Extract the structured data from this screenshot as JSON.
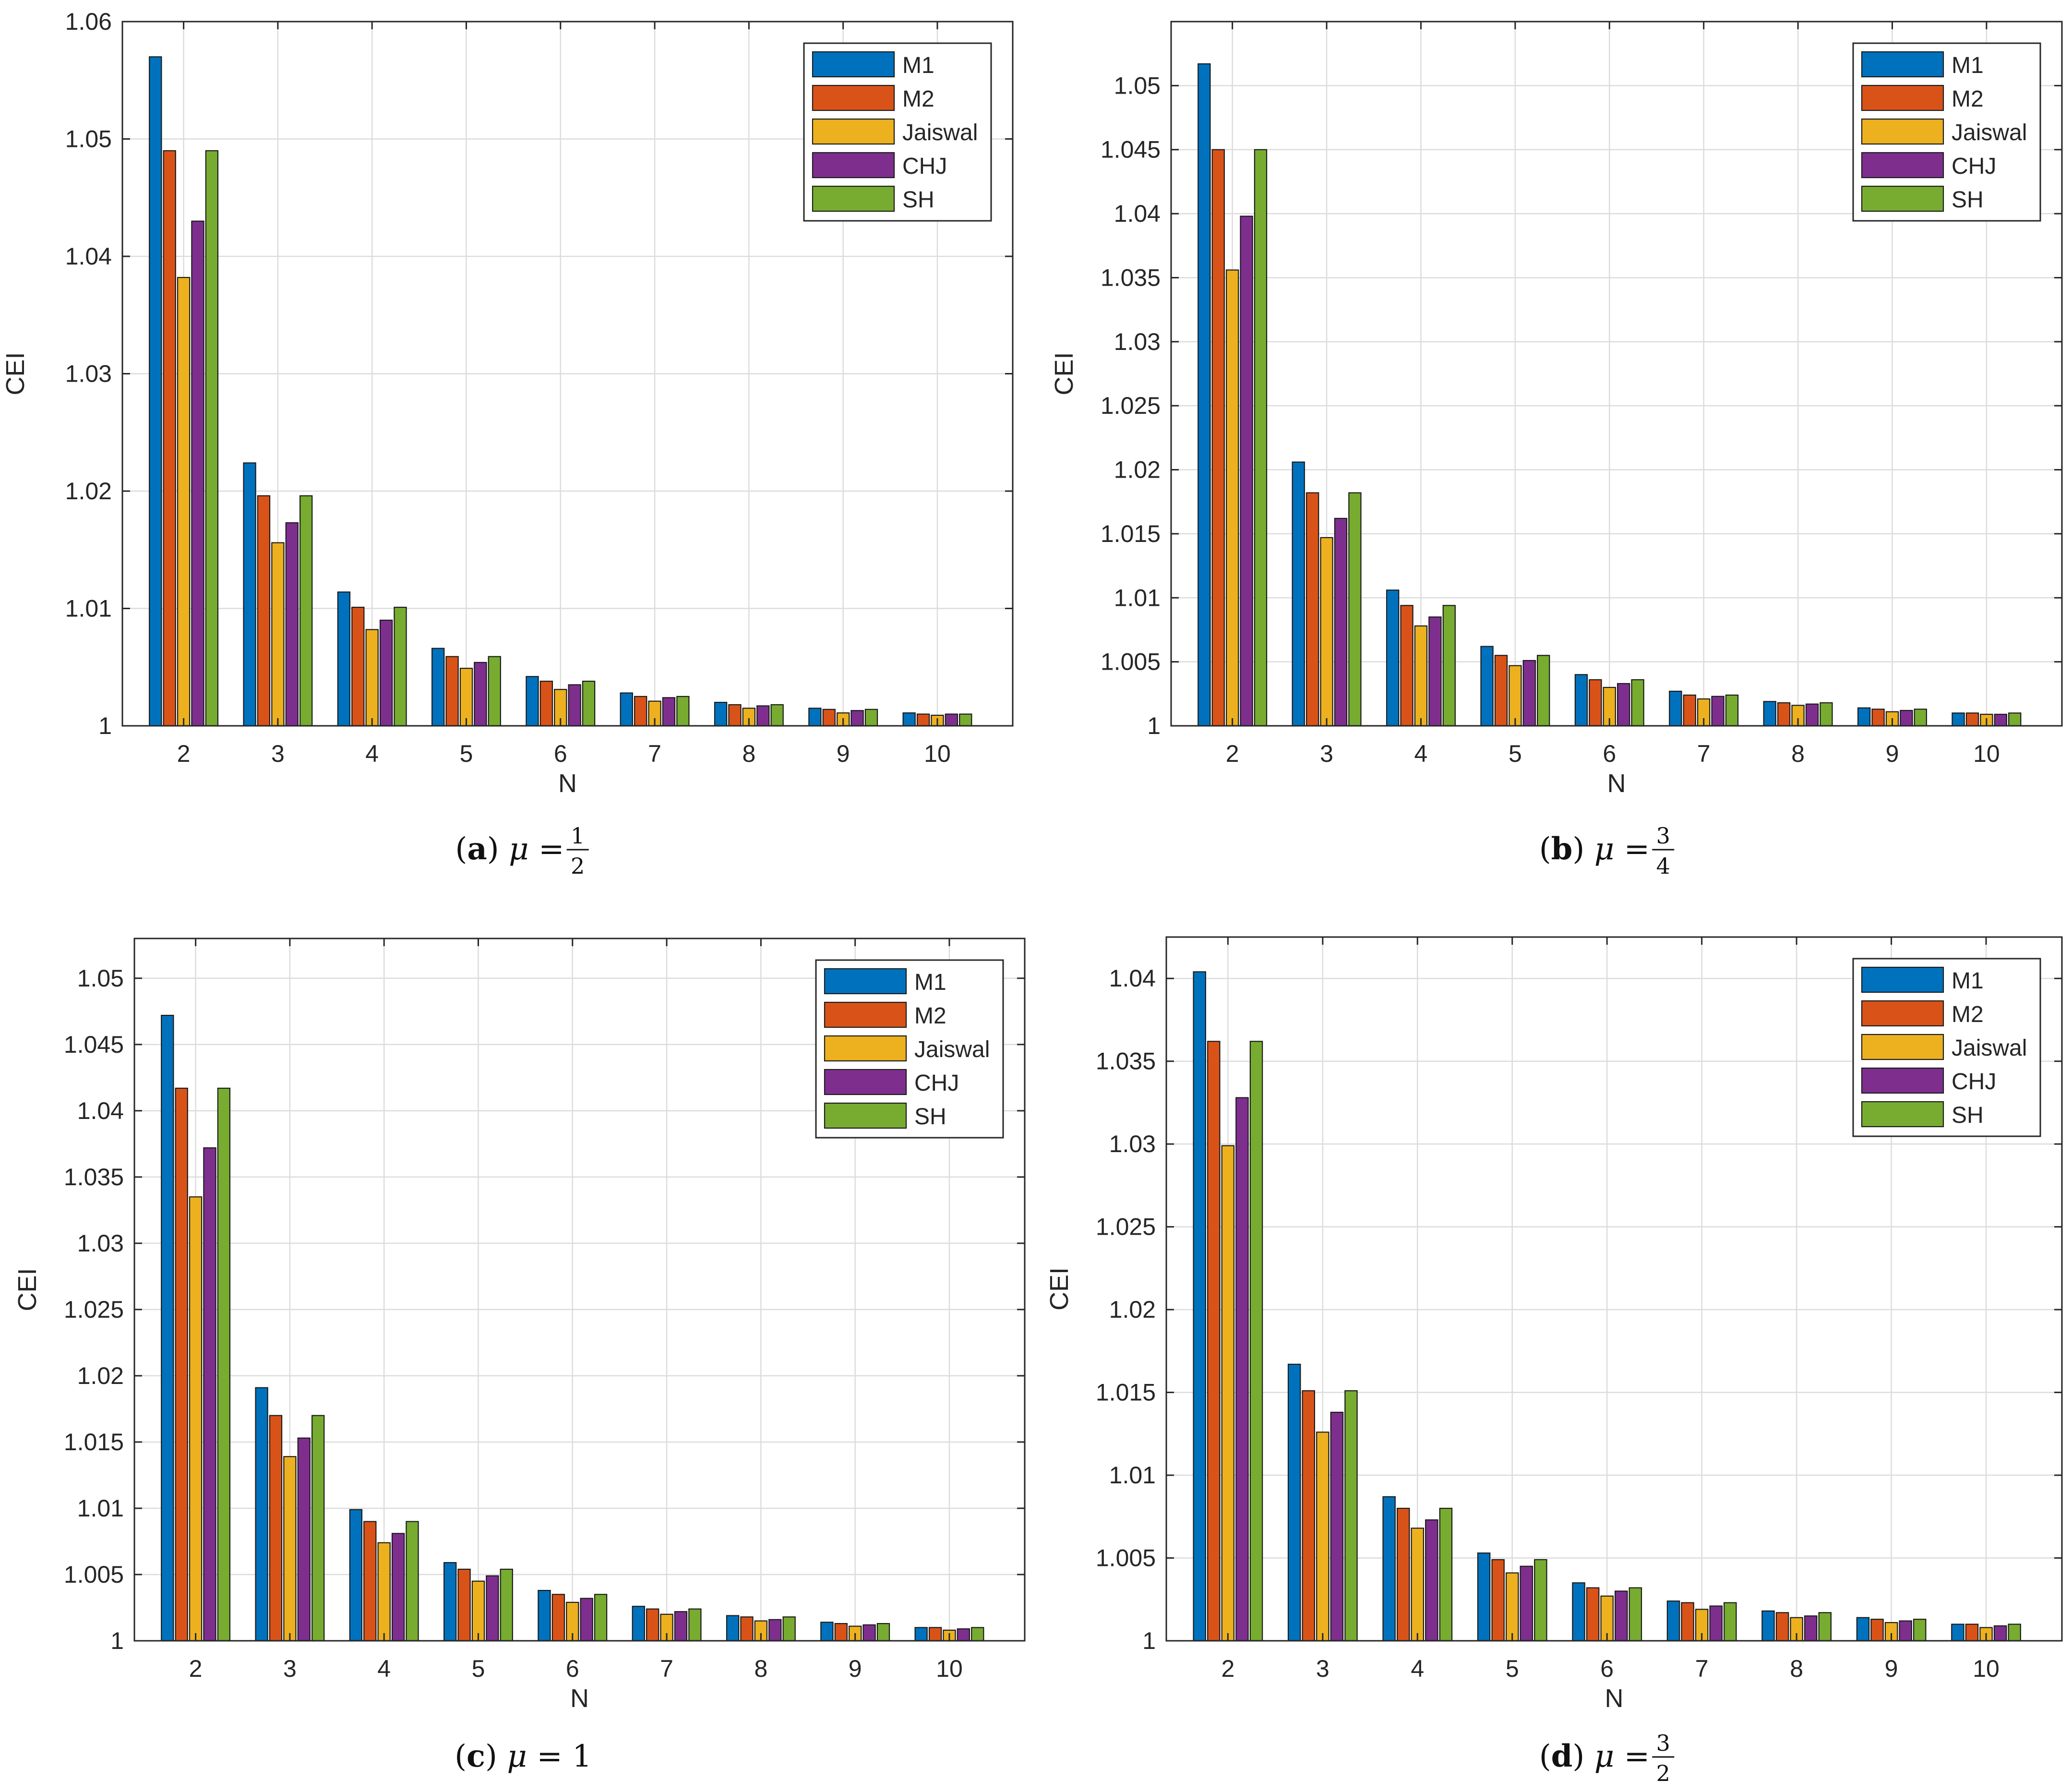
{
  "figure": {
    "series_colors": [
      "#0072BD",
      "#D95319",
      "#EDB120",
      "#7E2F8E",
      "#77AC30"
    ],
    "grid_color": "#dcdcdc",
    "axis_color": "#262626"
  },
  "chart_data": [
    {
      "type": "bar",
      "caption": {
        "label": "a",
        "symbol": "μ",
        "value": "1/2",
        "num": "1",
        "den": "2"
      },
      "xlabel": "N",
      "ylabel": "CEI",
      "categories": [
        "2",
        "3",
        "4",
        "5",
        "6",
        "7",
        "8",
        "9",
        "10"
      ],
      "ylim": [
        1,
        1.06
      ],
      "yticks": [
        1,
        1.01,
        1.02,
        1.03,
        1.04,
        1.05,
        1.06
      ],
      "yticklabels": [
        "1",
        "1.01",
        "1.02",
        "1.03",
        "1.04",
        "1.05",
        "1.06"
      ],
      "grid": true,
      "legend_position": "top-right",
      "series": [
        {
          "name": "M1",
          "values": [
            1.057,
            1.0224,
            1.0114,
            1.0066,
            1.0042,
            1.0028,
            1.002,
            1.0015,
            1.0011
          ]
        },
        {
          "name": "M2",
          "values": [
            1.049,
            1.0196,
            1.0101,
            1.0059,
            1.0038,
            1.0025,
            1.0018,
            1.0014,
            1.001
          ]
        },
        {
          "name": "Jaiswal",
          "values": [
            1.0382,
            1.0156,
            1.0082,
            1.0049,
            1.0031,
            1.0021,
            1.0015,
            1.0011,
            1.0009
          ]
        },
        {
          "name": "CHJ",
          "values": [
            1.043,
            1.0173,
            1.009,
            1.0054,
            1.0035,
            1.0024,
            1.0017,
            1.0013,
            1.001
          ]
        },
        {
          "name": "SH",
          "values": [
            1.049,
            1.0196,
            1.0101,
            1.0059,
            1.0038,
            1.0025,
            1.0018,
            1.0014,
            1.001
          ]
        }
      ]
    },
    {
      "type": "bar",
      "caption": {
        "label": "b",
        "symbol": "μ",
        "value": "3/4",
        "num": "3",
        "den": "4"
      },
      "xlabel": "N",
      "ylabel": "CEI",
      "categories": [
        "2",
        "3",
        "4",
        "5",
        "6",
        "7",
        "8",
        "9",
        "10"
      ],
      "ylim": [
        1,
        1.055
      ],
      "yticks": [
        1,
        1.005,
        1.01,
        1.015,
        1.02,
        1.025,
        1.03,
        1.035,
        1.04,
        1.045,
        1.05
      ],
      "yticklabels": [
        "1",
        "1.005",
        "1.01",
        "1.015",
        "1.02",
        "1.025",
        "1.03",
        "1.035",
        "1.04",
        "1.045",
        "1.05"
      ],
      "grid": true,
      "legend_position": "top-right",
      "series": [
        {
          "name": "M1",
          "values": [
            1.0517,
            1.0206,
            1.0106,
            1.0062,
            1.004,
            1.0027,
            1.0019,
            1.0014,
            1.001
          ]
        },
        {
          "name": "M2",
          "values": [
            1.045,
            1.0182,
            1.0094,
            1.0055,
            1.0036,
            1.0024,
            1.0018,
            1.0013,
            1.001
          ]
        },
        {
          "name": "Jaiswal",
          "values": [
            1.0356,
            1.0147,
            1.0078,
            1.0047,
            1.003,
            1.0021,
            1.0016,
            1.0011,
            1.0009
          ]
        },
        {
          "name": "CHJ",
          "values": [
            1.0398,
            1.0162,
            1.0085,
            1.0051,
            1.0033,
            1.0023,
            1.0017,
            1.0012,
            1.0009
          ]
        },
        {
          "name": "SH",
          "values": [
            1.045,
            1.0182,
            1.0094,
            1.0055,
            1.0036,
            1.0024,
            1.0018,
            1.0013,
            1.001
          ]
        }
      ]
    },
    {
      "type": "bar",
      "caption": {
        "label": "c",
        "symbol": "μ",
        "value": "1",
        "num": "",
        "den": ""
      },
      "xlabel": "N",
      "ylabel": "CEI",
      "categories": [
        "2",
        "3",
        "4",
        "5",
        "6",
        "7",
        "8",
        "9",
        "10"
      ],
      "ylim": [
        1,
        1.053
      ],
      "yticks": [
        1,
        1.005,
        1.01,
        1.015,
        1.02,
        1.025,
        1.03,
        1.035,
        1.04,
        1.045,
        1.05
      ],
      "yticklabels": [
        "1",
        "1.005",
        "1.01",
        "1.015",
        "1.02",
        "1.025",
        "1.03",
        "1.035",
        "1.04",
        "1.045",
        "1.05"
      ],
      "grid": true,
      "legend_position": "top-right",
      "series": [
        {
          "name": "M1",
          "values": [
            1.0472,
            1.0191,
            1.0099,
            1.0059,
            1.0038,
            1.0026,
            1.0019,
            1.0014,
            1.001
          ]
        },
        {
          "name": "M2",
          "values": [
            1.0417,
            1.017,
            1.009,
            1.0054,
            1.0035,
            1.0024,
            1.0018,
            1.0013,
            1.001
          ]
        },
        {
          "name": "Jaiswal",
          "values": [
            1.0335,
            1.0139,
            1.0074,
            1.0045,
            1.0029,
            1.002,
            1.0015,
            1.0011,
            1.0008
          ]
        },
        {
          "name": "CHJ",
          "values": [
            1.0372,
            1.0153,
            1.0081,
            1.0049,
            1.0032,
            1.0022,
            1.0016,
            1.0012,
            1.0009
          ]
        },
        {
          "name": "SH",
          "values": [
            1.0417,
            1.017,
            1.009,
            1.0054,
            1.0035,
            1.0024,
            1.0018,
            1.0013,
            1.001
          ]
        }
      ]
    },
    {
      "type": "bar",
      "caption": {
        "label": "d",
        "symbol": "μ",
        "value": "3/2",
        "num": "3",
        "den": "2"
      },
      "xlabel": "N",
      "ylabel": "CEI",
      "categories": [
        "2",
        "3",
        "4",
        "5",
        "6",
        "7",
        "8",
        "9",
        "10"
      ],
      "ylim": [
        1,
        1.0425
      ],
      "yticks": [
        1,
        1.005,
        1.01,
        1.015,
        1.02,
        1.025,
        1.03,
        1.035,
        1.04
      ],
      "yticklabels": [
        "1",
        "1.005",
        "1.01",
        "1.015",
        "1.02",
        "1.025",
        "1.03",
        "1.035",
        "1.04"
      ],
      "grid": true,
      "legend_position": "top-right",
      "series": [
        {
          "name": "M1",
          "values": [
            1.0404,
            1.0167,
            1.0087,
            1.0053,
            1.0035,
            1.0024,
            1.0018,
            1.0014,
            1.001
          ]
        },
        {
          "name": "M2",
          "values": [
            1.0362,
            1.0151,
            1.008,
            1.0049,
            1.0032,
            1.0023,
            1.0017,
            1.0013,
            1.001
          ]
        },
        {
          "name": "Jaiswal",
          "values": [
            1.0299,
            1.0126,
            1.0068,
            1.0041,
            1.0027,
            1.0019,
            1.0014,
            1.0011,
            1.0008
          ]
        },
        {
          "name": "CHJ",
          "values": [
            1.0328,
            1.0138,
            1.0073,
            1.0045,
            1.003,
            1.0021,
            1.0015,
            1.0012,
            1.0009
          ]
        },
        {
          "name": "SH",
          "values": [
            1.0362,
            1.0151,
            1.008,
            1.0049,
            1.0032,
            1.0023,
            1.0017,
            1.0013,
            1.001
          ]
        }
      ]
    }
  ]
}
